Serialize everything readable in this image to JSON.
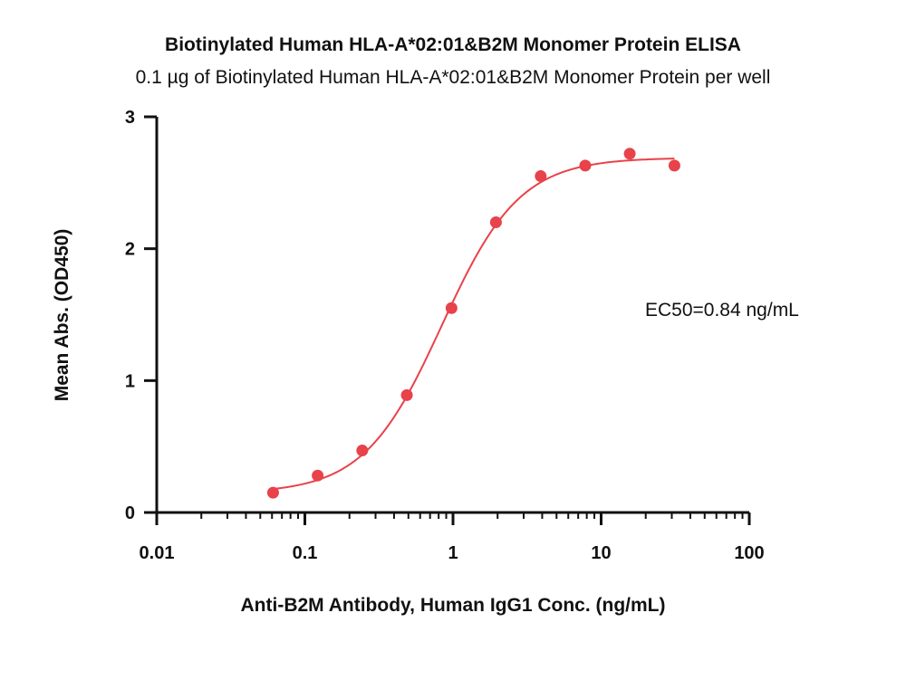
{
  "chart_data": {
    "type": "scatter",
    "title": "Biotinylated Human HLA-A*02:01&B2M Monomer Protein ELISA",
    "subtitle": "0.1 µg of Biotinylated Human HLA-A*02:01&B2M Monomer Protein per well",
    "xlabel": "Anti-B2M Antibody, Human IgG1 Conc. (ng/mL)",
    "ylabel": "Mean Abs. (OD450)",
    "x_scale": "log",
    "xlim": [
      0.01,
      100
    ],
    "ylim": [
      0,
      3
    ],
    "x_ticks": [
      0.01,
      0.1,
      1,
      10,
      100
    ],
    "x_tick_labels": [
      "0.01",
      "0.1",
      "1",
      "10",
      "100"
    ],
    "y_ticks": [
      0,
      1,
      2,
      3
    ],
    "y_tick_labels": [
      "0",
      "1",
      "2",
      "3"
    ],
    "grid": false,
    "series": [
      {
        "color": "#e8424a",
        "x": [
          0.061,
          0.122,
          0.244,
          0.488,
          0.977,
          1.95,
          3.91,
          7.81,
          15.6,
          31.25
        ],
        "y": [
          0.15,
          0.28,
          0.47,
          0.89,
          1.55,
          2.2,
          2.55,
          2.63,
          2.72,
          2.63
        ],
        "fit": {
          "model": "4PL",
          "bottom": 0.145,
          "top": 2.69,
          "ec50": 0.84,
          "hill": 1.65,
          "x_range": [
            0.061,
            31.25
          ]
        }
      }
    ],
    "annotations": [
      {
        "text": "EC50=0.84 ng/mL"
      }
    ]
  }
}
